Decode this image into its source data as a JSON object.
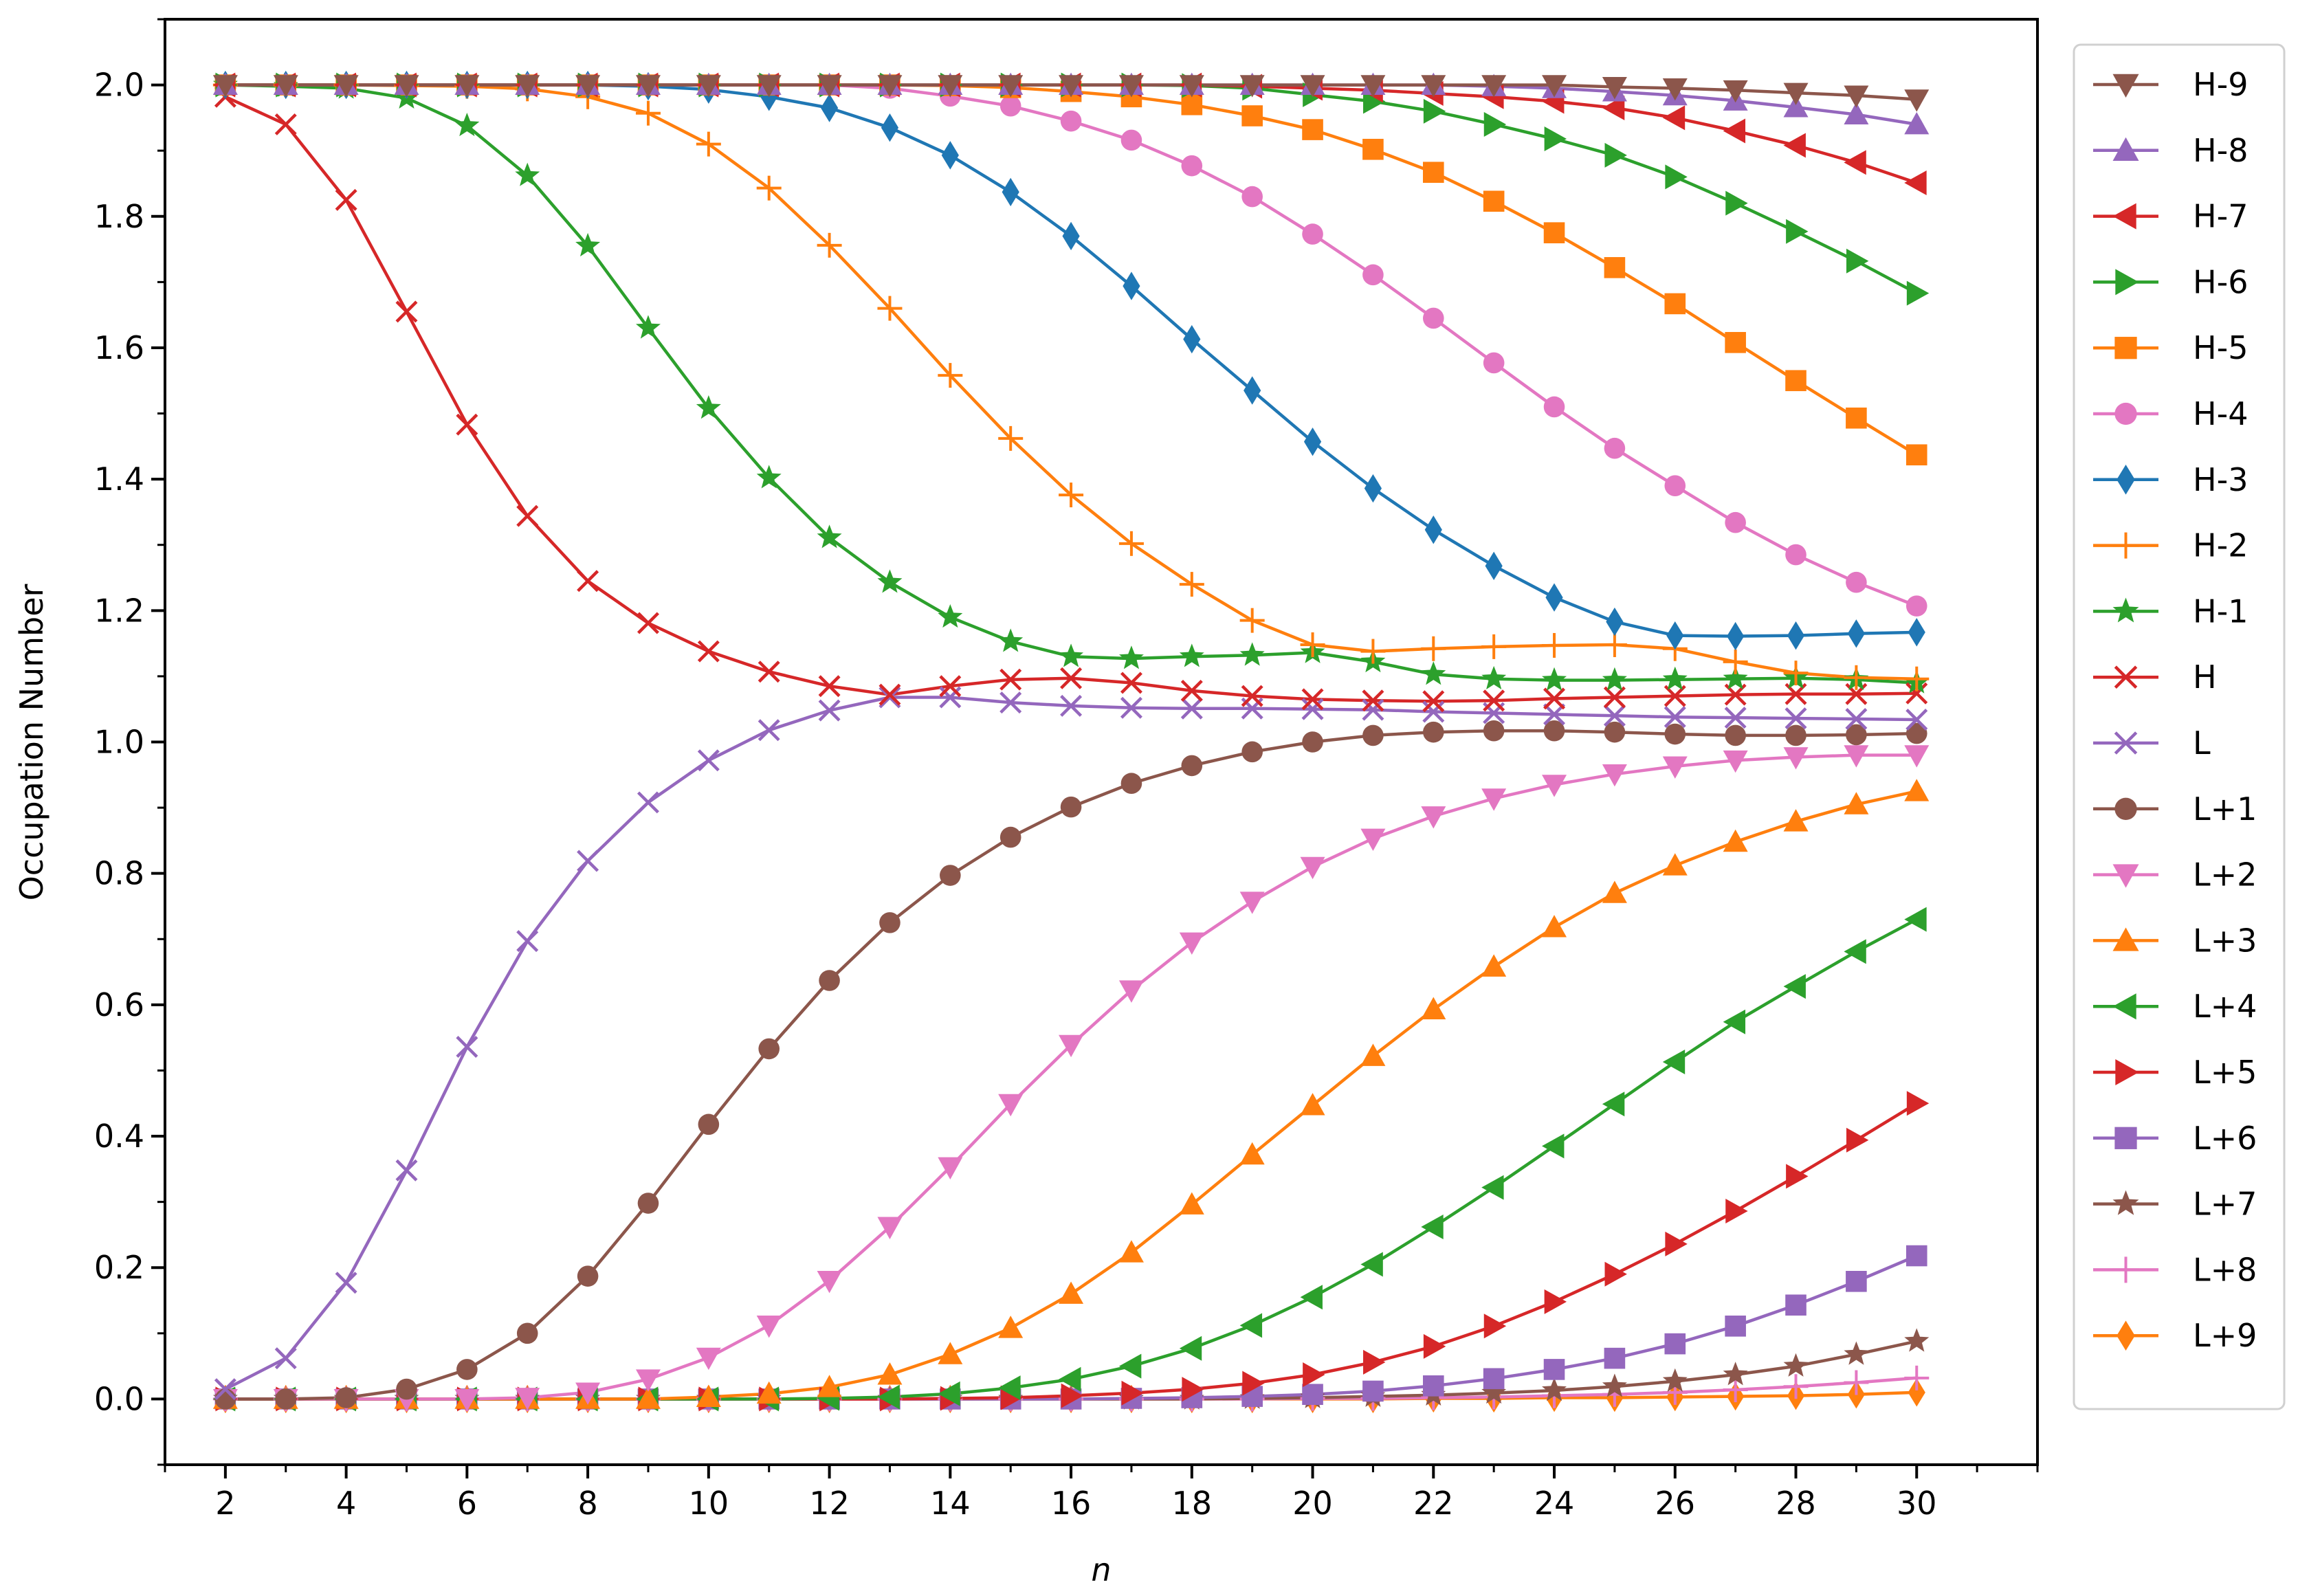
{
  "chart_data": {
    "type": "line",
    "title": "",
    "xlabel": "n",
    "ylabel": "Occupation Number",
    "xlim": [
      1,
      32
    ],
    "ylim": [
      -0.1,
      2.1
    ],
    "xticks": [
      2,
      4,
      6,
      8,
      10,
      12,
      14,
      16,
      18,
      20,
      22,
      24,
      26,
      28,
      30
    ],
    "xtick_labels": [
      "2",
      "4",
      "6",
      "8",
      "10",
      "12",
      "14",
      "16",
      "18",
      "20",
      "22",
      "24",
      "26",
      "28",
      "30"
    ],
    "yticks": [
      0.0,
      0.2,
      0.4,
      0.6,
      0.8,
      1.0,
      1.2,
      1.4,
      1.6,
      1.8,
      2.0
    ],
    "ytick_labels": [
      "0.0",
      "0.2",
      "0.4",
      "0.6",
      "0.8",
      "1.0",
      "1.2",
      "1.4",
      "1.6",
      "1.8",
      "2.0"
    ],
    "grid": false,
    "legend_position": "outside-right",
    "x": [
      2,
      3,
      4,
      5,
      6,
      7,
      8,
      9,
      10,
      11,
      12,
      13,
      14,
      15,
      16,
      17,
      18,
      19,
      20,
      21,
      22,
      23,
      24,
      25,
      26,
      27,
      28,
      29,
      30
    ],
    "series": [
      {
        "name": "H-9",
        "color": "#8c564b",
        "marker": "triangle-down",
        "values": [
          2.0,
          2.0,
          2.0,
          2.0,
          2.0,
          2.0,
          2.0,
          2.0,
          2.0,
          2.0,
          2.0,
          2.0,
          2.0,
          2.0,
          2.0,
          2.0,
          2.0,
          2.0,
          2.0,
          2.0,
          2.0,
          2.0,
          2.0,
          1.997,
          1.995,
          1.992,
          1.988,
          1.984,
          1.978
        ]
      },
      {
        "name": "H-8",
        "color": "#9467bd",
        "marker": "triangle-up",
        "values": [
          2.0,
          2.0,
          2.0,
          2.0,
          2.0,
          2.0,
          2.0,
          2.0,
          2.0,
          2.0,
          2.0,
          2.0,
          2.0,
          2.0,
          2.0,
          2.0,
          2.0,
          2.0,
          2.0,
          2.0,
          2.0,
          1.998,
          1.995,
          1.99,
          1.984,
          1.976,
          1.966,
          1.955,
          1.94
        ]
      },
      {
        "name": "H-7",
        "color": "#d62728",
        "marker": "triangle-left",
        "values": [
          2.0,
          2.0,
          2.0,
          2.0,
          2.0,
          2.0,
          2.0,
          2.0,
          2.0,
          2.0,
          2.0,
          2.0,
          2.0,
          2.0,
          2.0,
          2.0,
          2.0,
          1.998,
          1.995,
          1.992,
          1.987,
          1.982,
          1.975,
          1.965,
          1.95,
          1.93,
          1.908,
          1.882,
          1.851
        ]
      },
      {
        "name": "H-6",
        "color": "#2ca02c",
        "marker": "triangle-right",
        "values": [
          2.0,
          2.0,
          2.0,
          2.0,
          2.0,
          2.0,
          2.0,
          2.0,
          2.0,
          2.0,
          2.0,
          2.0,
          2.0,
          2.0,
          2.0,
          2.0,
          1.999,
          1.995,
          1.985,
          1.975,
          1.96,
          1.94,
          1.918,
          1.893,
          1.86,
          1.82,
          1.777,
          1.732,
          1.683
        ]
      },
      {
        "name": "H-5",
        "color": "#ff7f0e",
        "marker": "square",
        "values": [
          2.0,
          2.0,
          2.0,
          2.0,
          2.0,
          2.0,
          2.0,
          2.0,
          2.0,
          2.0,
          2.0,
          2.0,
          1.999,
          1.996,
          1.99,
          1.982,
          1.97,
          1.953,
          1.932,
          1.902,
          1.867,
          1.823,
          1.775,
          1.722,
          1.667,
          1.608,
          1.55,
          1.493,
          1.437
        ]
      },
      {
        "name": "H-4",
        "color": "#e377c2",
        "marker": "circle",
        "values": [
          2.0,
          2.0,
          2.0,
          2.0,
          2.0,
          2.0,
          2.0,
          2.0,
          2.0,
          2.0,
          2.0,
          1.995,
          1.983,
          1.968,
          1.945,
          1.916,
          1.877,
          1.83,
          1.773,
          1.711,
          1.645,
          1.577,
          1.51,
          1.447,
          1.39,
          1.334,
          1.285,
          1.243,
          1.207
        ]
      },
      {
        "name": "H-3",
        "color": "#1f77b4",
        "marker": "diamond",
        "values": [
          2.0,
          2.0,
          2.0,
          2.0,
          2.0,
          2.0,
          2.0,
          1.998,
          1.993,
          1.982,
          1.965,
          1.935,
          1.893,
          1.837,
          1.77,
          1.694,
          1.613,
          1.535,
          1.457,
          1.386,
          1.323,
          1.268,
          1.22,
          1.183,
          1.162,
          1.161,
          1.162,
          1.165,
          1.167
        ]
      },
      {
        "name": "H-2",
        "color": "#ff7f0e",
        "marker": "plus",
        "values": [
          2.0,
          2.0,
          2.0,
          1.999,
          1.998,
          1.994,
          1.982,
          1.957,
          1.91,
          1.843,
          1.756,
          1.66,
          1.558,
          1.462,
          1.376,
          1.302,
          1.24,
          1.185,
          1.148,
          1.138,
          1.142,
          1.145,
          1.147,
          1.148,
          1.142,
          1.122,
          1.105,
          1.098,
          1.096
        ]
      },
      {
        "name": "H-1",
        "color": "#2ca02c",
        "marker": "star",
        "values": [
          2.0,
          1.998,
          1.995,
          1.98,
          1.938,
          1.862,
          1.755,
          1.63,
          1.508,
          1.402,
          1.311,
          1.243,
          1.19,
          1.153,
          1.13,
          1.127,
          1.13,
          1.132,
          1.136,
          1.122,
          1.103,
          1.096,
          1.094,
          1.094,
          1.095,
          1.096,
          1.097,
          1.095,
          1.09
        ]
      },
      {
        "name": "H",
        "color": "#d62728",
        "marker": "x",
        "values": [
          1.982,
          1.94,
          1.825,
          1.655,
          1.483,
          1.344,
          1.245,
          1.181,
          1.138,
          1.107,
          1.085,
          1.072,
          1.085,
          1.095,
          1.097,
          1.09,
          1.078,
          1.07,
          1.065,
          1.063,
          1.062,
          1.063,
          1.066,
          1.068,
          1.07,
          1.072,
          1.073,
          1.073,
          1.074
        ]
      },
      {
        "name": "L",
        "color": "#9467bd",
        "marker": "x",
        "values": [
          0.015,
          0.062,
          0.177,
          0.348,
          0.536,
          0.697,
          0.819,
          0.908,
          0.972,
          1.018,
          1.048,
          1.068,
          1.068,
          1.06,
          1.055,
          1.052,
          1.051,
          1.051,
          1.05,
          1.049,
          1.046,
          1.044,
          1.042,
          1.04,
          1.038,
          1.037,
          1.036,
          1.035,
          1.034
        ]
      },
      {
        "name": "L+1",
        "color": "#8c564b",
        "marker": "circle",
        "values": [
          0.0,
          0.0,
          0.002,
          0.015,
          0.045,
          0.1,
          0.187,
          0.298,
          0.418,
          0.533,
          0.637,
          0.725,
          0.797,
          0.855,
          0.901,
          0.937,
          0.964,
          0.985,
          1.0,
          1.01,
          1.015,
          1.017,
          1.017,
          1.015,
          1.012,
          1.01,
          1.01,
          1.011,
          1.013
        ]
      },
      {
        "name": "L+2",
        "color": "#e377c2",
        "marker": "triangle-down",
        "values": [
          0.0,
          0.0,
          0.0,
          0.0,
          0.0,
          0.002,
          0.01,
          0.03,
          0.063,
          0.112,
          0.18,
          0.262,
          0.353,
          0.449,
          0.539,
          0.622,
          0.695,
          0.757,
          0.81,
          0.853,
          0.887,
          0.914,
          0.935,
          0.951,
          0.963,
          0.972,
          0.977,
          0.98,
          0.98
        ]
      },
      {
        "name": "L+3",
        "color": "#ff7f0e",
        "marker": "triangle-up",
        "values": [
          0.0,
          0.0,
          0.0,
          0.0,
          0.0,
          0.0,
          0.0,
          0.0,
          0.003,
          0.008,
          0.018,
          0.037,
          0.068,
          0.108,
          0.16,
          0.223,
          0.296,
          0.372,
          0.447,
          0.522,
          0.593,
          0.658,
          0.718,
          0.77,
          0.812,
          0.848,
          0.879,
          0.905,
          0.925
        ]
      },
      {
        "name": "L+4",
        "color": "#2ca02c",
        "marker": "triangle-left",
        "values": [
          0.0,
          0.0,
          0.0,
          0.0,
          0.0,
          0.0,
          0.0,
          0.0,
          0.0,
          0.0,
          0.001,
          0.003,
          0.008,
          0.017,
          0.03,
          0.05,
          0.077,
          0.112,
          0.155,
          0.205,
          0.262,
          0.322,
          0.385,
          0.449,
          0.513,
          0.574,
          0.628,
          0.681,
          0.73
        ]
      },
      {
        "name": "L+5",
        "color": "#d62728",
        "marker": "triangle-right",
        "values": [
          0.0,
          0.0,
          0.0,
          0.0,
          0.0,
          0.0,
          0.0,
          0.0,
          0.0,
          0.0,
          0.0,
          0.0,
          0.001,
          0.002,
          0.005,
          0.009,
          0.015,
          0.024,
          0.037,
          0.056,
          0.08,
          0.111,
          0.148,
          0.19,
          0.236,
          0.286,
          0.339,
          0.394,
          0.45
        ]
      },
      {
        "name": "L+6",
        "color": "#9467bd",
        "marker": "square",
        "values": [
          0.0,
          0.0,
          0.0,
          0.0,
          0.0,
          0.0,
          0.0,
          0.0,
          0.0,
          0.0,
          0.0,
          0.0,
          0.0,
          0.0,
          0.0,
          0.001,
          0.002,
          0.004,
          0.007,
          0.012,
          0.02,
          0.031,
          0.045,
          0.062,
          0.084,
          0.111,
          0.143,
          0.179,
          0.218
        ]
      },
      {
        "name": "L+7",
        "color": "#8c564b",
        "marker": "star",
        "values": [
          0.0,
          0.0,
          0.0,
          0.0,
          0.0,
          0.0,
          0.0,
          0.0,
          0.0,
          0.0,
          0.0,
          0.0,
          0.0,
          0.0,
          0.0,
          0.0,
          0.0,
          0.001,
          0.002,
          0.004,
          0.006,
          0.009,
          0.013,
          0.019,
          0.027,
          0.037,
          0.05,
          0.068,
          0.088
        ]
      },
      {
        "name": "L+8",
        "color": "#e377c2",
        "marker": "plus",
        "values": [
          0.0,
          0.0,
          0.0,
          0.0,
          0.0,
          0.0,
          0.0,
          0.0,
          0.0,
          0.0,
          0.0,
          0.0,
          0.0,
          0.0,
          0.0,
          0.0,
          0.0,
          0.0,
          0.001,
          0.001,
          0.002,
          0.003,
          0.005,
          0.007,
          0.01,
          0.014,
          0.019,
          0.025,
          0.032
        ]
      },
      {
        "name": "L+9",
        "color": "#ff7f0e",
        "marker": "diamond",
        "values": [
          0.0,
          0.0,
          0.0,
          0.0,
          0.0,
          0.0,
          0.0,
          0.0,
          0.0,
          0.0,
          0.0,
          0.0,
          0.0,
          0.0,
          0.0,
          0.0,
          0.0,
          0.0,
          0.0,
          0.0,
          0.001,
          0.001,
          0.002,
          0.002,
          0.003,
          0.004,
          0.005,
          0.007,
          0.01
        ]
      }
    ]
  }
}
